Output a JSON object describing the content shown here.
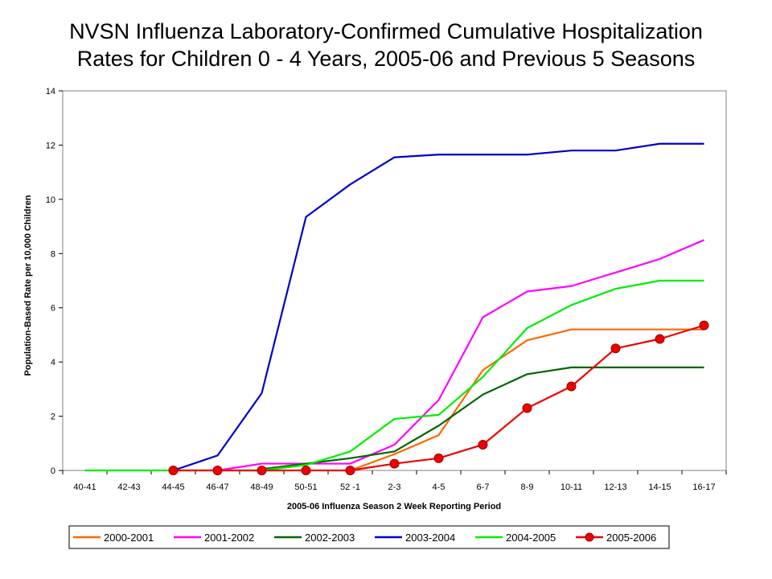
{
  "chart_data": {
    "type": "line",
    "title_lines": [
      "NVSN Influenza Laboratory-Confirmed Cumulative Hospitalization",
      "Rates for Children 0 - 4 Years, 2005-06 and Previous 5 Seasons"
    ],
    "xlabel": "2005-06 Influenza Season 2 Week Reporting Period",
    "ylabel": "Population-Based Rate per 10,000 Children",
    "ylim": [
      0,
      14
    ],
    "yticks": [
      0,
      2,
      4,
      6,
      8,
      10,
      12,
      14
    ],
    "categories": [
      "40-41",
      "42-43",
      "44-45",
      "46-47",
      "48-49",
      "50-51",
      "52 -1",
      "2-3",
      "4-5",
      "6-7",
      "8-9",
      "10-11",
      "12-13",
      "14-15",
      "16-17"
    ],
    "grid": false,
    "legend_position": "bottom",
    "series": [
      {
        "name": "2000-2001",
        "color": "#ff6600",
        "marker": false,
        "values": [
          null,
          null,
          null,
          null,
          null,
          null,
          0,
          0.6,
          1.3,
          3.7,
          4.8,
          5.2,
          5.2,
          5.2,
          5.2
        ]
      },
      {
        "name": "2001-2002",
        "color": "#ff00ff",
        "marker": false,
        "values": [
          null,
          null,
          null,
          0,
          0.25,
          0.25,
          0.25,
          0.95,
          2.6,
          5.65,
          6.6,
          6.8,
          7.3,
          7.8,
          8.5
        ]
      },
      {
        "name": "2002-2003",
        "color": "#006600",
        "marker": false,
        "values": [
          null,
          null,
          null,
          null,
          0.05,
          0.25,
          0.45,
          0.7,
          1.65,
          2.8,
          3.55,
          3.8,
          3.8,
          3.8,
          3.8
        ]
      },
      {
        "name": "2003-2004",
        "color": "#0000cc",
        "marker": false,
        "values": [
          null,
          null,
          0,
          0.55,
          2.85,
          9.35,
          10.55,
          11.55,
          11.65,
          11.65,
          11.65,
          11.8,
          11.8,
          12.05,
          12.05
        ]
      },
      {
        "name": "2004-2005",
        "color": "#00ee00",
        "marker": false,
        "values": [
          0,
          0,
          0,
          0,
          0,
          0.2,
          0.7,
          1.9,
          2.05,
          3.45,
          5.25,
          6.1,
          6.7,
          7.0,
          7.0
        ]
      },
      {
        "name": "2005-2006",
        "color": "#ee0000",
        "marker": true,
        "values": [
          null,
          null,
          0,
          0,
          0,
          0,
          0,
          0.25,
          0.45,
          0.95,
          2.3,
          3.1,
          4.5,
          4.85,
          5.35
        ]
      }
    ]
  }
}
